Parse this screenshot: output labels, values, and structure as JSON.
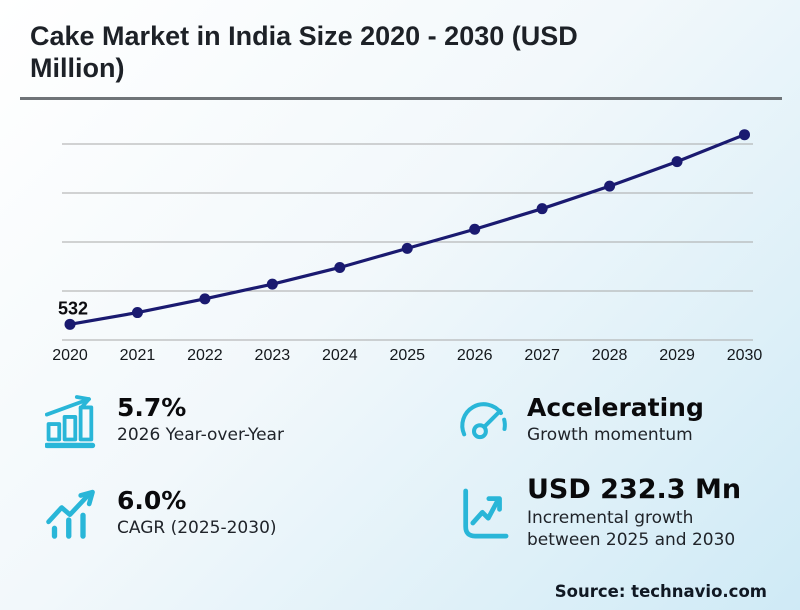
{
  "header": {
    "title": "Cake Market in India Size 2020 - 2030 (USD Million)",
    "title_lines": [
      "Cake Market in India Size 2020 - 2030 (USD",
      "Million)"
    ]
  },
  "chart_data": {
    "type": "line",
    "title": "Cake Market in India Size 2020 - 2030 (USD Million)",
    "x": [
      "2020",
      "2021",
      "2022",
      "2023",
      "2024",
      "2025",
      "2026",
      "2027",
      "2028",
      "2029",
      "2030"
    ],
    "values": [
      532,
      556,
      584,
      614,
      648,
      687,
      726,
      768,
      814,
      864,
      919
    ],
    "point_label": {
      "x": "2020",
      "text": "532"
    },
    "gridline_values": [
      500,
      600,
      700,
      800,
      900
    ],
    "ylim": [
      490,
      950
    ],
    "grid": true,
    "legend_position": "none",
    "xlabel": "",
    "ylabel": ""
  },
  "stats": [
    {
      "icon": "bar-growth-icon",
      "value": "5.7%",
      "label": "2026 Year-over-Year"
    },
    {
      "icon": "gauge-icon",
      "value": "Accelerating",
      "label": "Growth momentum"
    },
    {
      "icon": "trend-bars-icon",
      "value": "6.0%",
      "label": "CAGR (2025-2030)"
    },
    {
      "icon": "chart-axis-icon",
      "value": "USD 232.3 Mn",
      "label": "Incremental growth between 2025 and 2030"
    }
  ],
  "source": "Source: technavio.com",
  "colors": {
    "line_navy": "#1a1a70",
    "accent_cyan": "#29b6d8",
    "grid_gray": "#a8a8a8",
    "separator_gray": "#6f7478",
    "title_text": "#1d2127",
    "bg_start": "#ffffff",
    "bg_end": "#cfeaf6"
  }
}
